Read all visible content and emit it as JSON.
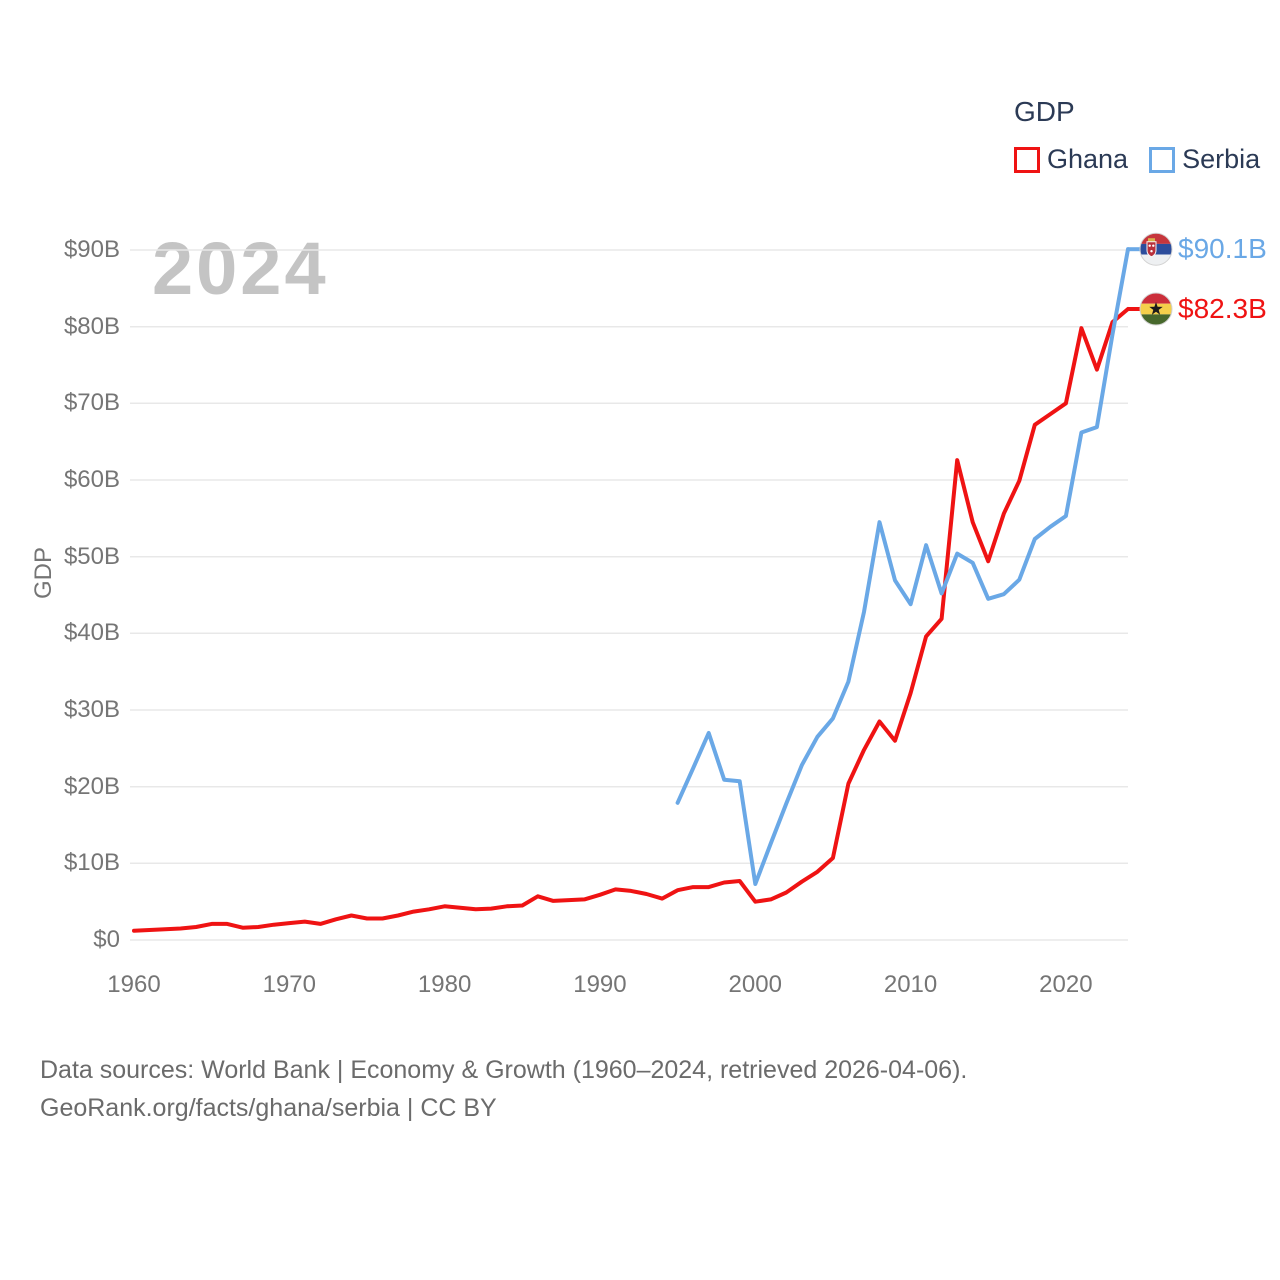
{
  "watermark_year": "2024",
  "y_axis_title": "GDP",
  "legend": {
    "title": "GDP",
    "items": [
      {
        "label": "Ghana",
        "color": "#ef1313"
      },
      {
        "label": "Serbia",
        "color": "#6aa8e6"
      }
    ]
  },
  "footer": {
    "line1": "Data sources: World Bank | Economy & Growth (1960–2024, retrieved 2026-04-06).",
    "line2": "GeoRank.org/facts/ghana/serbia | CC BY"
  },
  "chart_data": {
    "type": "line",
    "title": "GDP",
    "xlabel": "",
    "ylabel": "GDP",
    "ylim": [
      0,
      90
    ],
    "xlim": [
      1960,
      2024
    ],
    "yticks": [
      0,
      10,
      20,
      30,
      40,
      50,
      60,
      70,
      80,
      90
    ],
    "ytick_format": "$#B",
    "xticks": [
      1960,
      1970,
      1980,
      1990,
      2000,
      2010,
      2020
    ],
    "grid": "horizontal",
    "legend_position": "top-right",
    "series": [
      {
        "name": "Ghana",
        "color": "#ef1313",
        "start_year": 1960,
        "end_label": "$82.3B",
        "end_value": 82.3,
        "values": [
          1.2,
          1.3,
          1.4,
          1.5,
          1.7,
          2.1,
          2.1,
          1.6,
          1.7,
          2.0,
          2.2,
          2.4,
          2.1,
          2.7,
          3.2,
          2.8,
          2.8,
          3.2,
          3.7,
          4.0,
          4.4,
          4.2,
          4.0,
          4.1,
          4.4,
          4.5,
          5.7,
          5.1,
          5.2,
          5.3,
          5.9,
          6.6,
          6.4,
          6.0,
          5.4,
          6.5,
          6.9,
          6.9,
          7.5,
          7.7,
          5.0,
          5.3,
          6.2,
          7.6,
          8.9,
          10.7,
          20.4,
          24.8,
          28.5,
          26.0,
          32.2,
          39.6,
          41.9,
          62.6,
          54.5,
          49.4,
          55.6,
          59.9,
          67.2,
          68.6,
          70.0,
          79.8,
          74.4,
          80.6,
          82.3
        ]
      },
      {
        "name": "Serbia",
        "color": "#6aa8e6",
        "start_year": 1995,
        "end_label": "$90.1B",
        "end_value": 90.1,
        "values": [
          17.9,
          22.4,
          27.0,
          20.9,
          20.7,
          7.3,
          12.6,
          17.8,
          22.8,
          26.5,
          28.9,
          33.7,
          42.8,
          54.5,
          46.9,
          43.8,
          51.5,
          45.2,
          50.4,
          49.2,
          44.5,
          45.1,
          47.0,
          52.3,
          53.9,
          55.3,
          66.2,
          66.9,
          79.0,
          90.1
        ]
      }
    ]
  }
}
